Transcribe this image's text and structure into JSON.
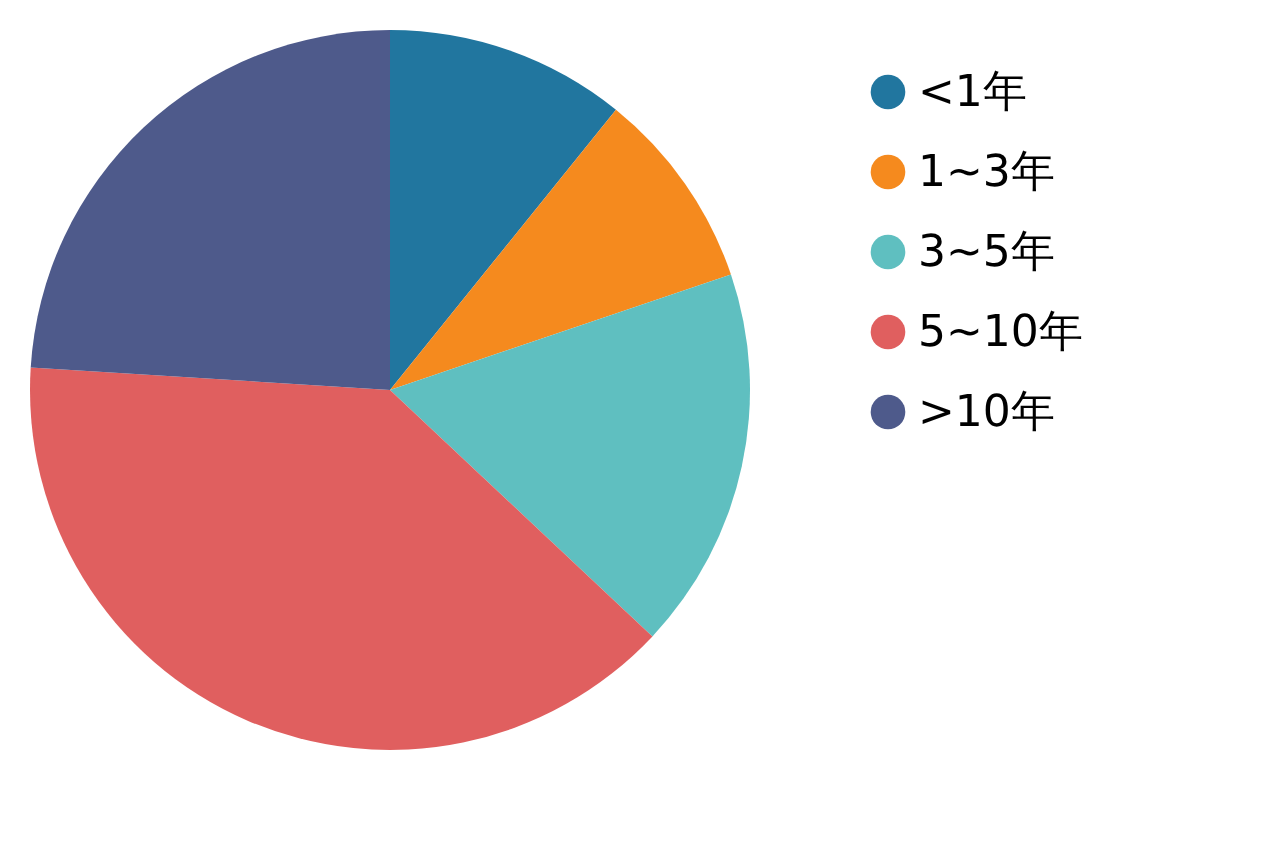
{
  "chart_data": {
    "type": "pie",
    "categories": [
      "<1年",
      "1~3年",
      "3~5年",
      "5~10年",
      ">10年"
    ],
    "values": [
      10.8,
      9.0,
      17.2,
      39.0,
      24.0
    ],
    "colors": [
      "#21769f",
      "#f58a1e",
      "#5fbfc0",
      "#e05f5f",
      "#4e5a8b"
    ],
    "legend": "right"
  }
}
